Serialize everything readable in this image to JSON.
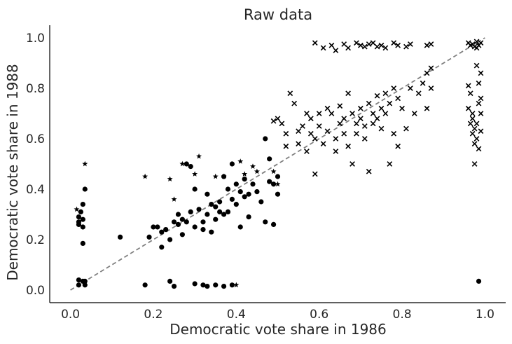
{
  "chart_data": {
    "type": "scatter",
    "title": "Raw data",
    "xlabel": "Democratic vote share in 1986",
    "ylabel": "Democratic vote share in 1988",
    "xlim": [
      -0.05,
      1.05
    ],
    "ylim": [
      -0.05,
      1.05
    ],
    "xticks": [
      "0.0",
      "0.2",
      "0.4",
      "0.6",
      "0.8",
      "1.0"
    ],
    "yticks": [
      "0.0",
      "0.2",
      "0.4",
      "0.6",
      "0.8",
      "1.0"
    ],
    "grid": false,
    "reference_line": {
      "style": "dashed",
      "color": "#808080",
      "from": [
        0,
        0
      ],
      "to": [
        1,
        1
      ]
    },
    "series": [
      {
        "marker": "circle",
        "points": [
          [
            0.02,
            0.29
          ],
          [
            0.02,
            0.27
          ],
          [
            0.02,
            0.26
          ],
          [
            0.03,
            0.28
          ],
          [
            0.025,
            0.31
          ],
          [
            0.03,
            0.25
          ],
          [
            0.03,
            0.34
          ],
          [
            0.035,
            0.4
          ],
          [
            0.03,
            0.185
          ],
          [
            0.02,
            0.04
          ],
          [
            0.03,
            0.035
          ],
          [
            0.035,
            0.035
          ],
          [
            0.02,
            0.02
          ],
          [
            0.035,
            0.02
          ],
          [
            0.12,
            0.21
          ],
          [
            0.18,
            0.02
          ],
          [
            0.19,
            0.21
          ],
          [
            0.2,
            0.25
          ],
          [
            0.21,
            0.25
          ],
          [
            0.22,
            0.23
          ],
          [
            0.23,
            0.24
          ],
          [
            0.22,
            0.17
          ],
          [
            0.24,
            0.2
          ],
          [
            0.24,
            0.035
          ],
          [
            0.25,
            0.015
          ],
          [
            0.25,
            0.27
          ],
          [
            0.26,
            0.26
          ],
          [
            0.26,
            0.3
          ],
          [
            0.27,
            0.22
          ],
          [
            0.27,
            0.28
          ],
          [
            0.28,
            0.27
          ],
          [
            0.28,
            0.5
          ],
          [
            0.29,
            0.49
          ],
          [
            0.29,
            0.31
          ],
          [
            0.3,
            0.25
          ],
          [
            0.3,
            0.4
          ],
          [
            0.31,
            0.32
          ],
          [
            0.32,
            0.24
          ],
          [
            0.32,
            0.27
          ],
          [
            0.33,
            0.38
          ],
          [
            0.33,
            0.3
          ],
          [
            0.34,
            0.34
          ],
          [
            0.34,
            0.23
          ],
          [
            0.35,
            0.28
          ],
          [
            0.35,
            0.33
          ],
          [
            0.36,
            0.31
          ],
          [
            0.36,
            0.35
          ],
          [
            0.37,
            0.3
          ],
          [
            0.37,
            0.45
          ],
          [
            0.38,
            0.31
          ],
          [
            0.38,
            0.4
          ],
          [
            0.39,
            0.36
          ],
          [
            0.39,
            0.5
          ],
          [
            0.4,
            0.42
          ],
          [
            0.4,
            0.34
          ],
          [
            0.41,
            0.39
          ],
          [
            0.41,
            0.25
          ],
          [
            0.42,
            0.37
          ],
          [
            0.42,
            0.44
          ],
          [
            0.43,
            0.38
          ],
          [
            0.43,
            0.29
          ],
          [
            0.44,
            0.42
          ],
          [
            0.45,
            0.39
          ],
          [
            0.46,
            0.35
          ],
          [
            0.47,
            0.6
          ],
          [
            0.47,
            0.27
          ],
          [
            0.48,
            0.43
          ],
          [
            0.48,
            0.52
          ],
          [
            0.49,
            0.42
          ],
          [
            0.49,
            0.26
          ],
          [
            0.5,
            0.45
          ],
          [
            0.5,
            0.38
          ],
          [
            0.3,
            0.025
          ],
          [
            0.32,
            0.02
          ],
          [
            0.33,
            0.015
          ],
          [
            0.35,
            0.02
          ],
          [
            0.37,
            0.015
          ],
          [
            0.39,
            0.02
          ],
          [
            0.985,
            0.035
          ]
        ]
      },
      {
        "marker": "star",
        "points": [
          [
            0.015,
            0.32
          ],
          [
            0.035,
            0.5
          ],
          [
            0.18,
            0.45
          ],
          [
            0.24,
            0.44
          ],
          [
            0.27,
            0.5
          ],
          [
            0.3,
            0.46
          ],
          [
            0.31,
            0.53
          ],
          [
            0.35,
            0.45
          ],
          [
            0.37,
            0.45
          ],
          [
            0.41,
            0.51
          ],
          [
            0.42,
            0.46
          ],
          [
            0.44,
            0.49
          ],
          [
            0.45,
            0.47
          ],
          [
            0.49,
            0.47
          ],
          [
            0.5,
            0.42
          ],
          [
            0.4,
            0.02
          ],
          [
            0.25,
            0.36
          ]
        ]
      },
      {
        "marker": "x",
        "points": [
          [
            0.49,
            0.67
          ],
          [
            0.5,
            0.68
          ],
          [
            0.51,
            0.66
          ],
          [
            0.52,
            0.62
          ],
          [
            0.52,
            0.57
          ],
          [
            0.53,
            0.78
          ],
          [
            0.54,
            0.74
          ],
          [
            0.55,
            0.63
          ],
          [
            0.55,
            0.58
          ],
          [
            0.56,
            0.65
          ],
          [
            0.57,
            0.7
          ],
          [
            0.57,
            0.55
          ],
          [
            0.58,
            0.62
          ],
          [
            0.58,
            0.68
          ],
          [
            0.59,
            0.6
          ],
          [
            0.59,
            0.46
          ],
          [
            0.6,
            0.65
          ],
          [
            0.6,
            0.7
          ],
          [
            0.61,
            0.58
          ],
          [
            0.62,
            0.72
          ],
          [
            0.62,
            0.63
          ],
          [
            0.63,
            0.7
          ],
          [
            0.64,
            0.6
          ],
          [
            0.64,
            0.55
          ],
          [
            0.65,
            0.73
          ],
          [
            0.65,
            0.66
          ],
          [
            0.66,
            0.68
          ],
          [
            0.66,
            0.62
          ],
          [
            0.67,
            0.78
          ],
          [
            0.67,
            0.57
          ],
          [
            0.68,
            0.7
          ],
          [
            0.68,
            0.5
          ],
          [
            0.69,
            0.66
          ],
          [
            0.69,
            0.62
          ],
          [
            0.7,
            0.72
          ],
          [
            0.7,
            0.68
          ],
          [
            0.71,
            0.65
          ],
          [
            0.71,
            0.6
          ],
          [
            0.72,
            0.74
          ],
          [
            0.72,
            0.47
          ],
          [
            0.73,
            0.7
          ],
          [
            0.73,
            0.66
          ],
          [
            0.74,
            0.77
          ],
          [
            0.74,
            0.68
          ],
          [
            0.75,
            0.72
          ],
          [
            0.75,
            0.64
          ],
          [
            0.76,
            0.78
          ],
          [
            0.76,
            0.7
          ],
          [
            0.77,
            0.74
          ],
          [
            0.77,
            0.5
          ],
          [
            0.78,
            0.8
          ],
          [
            0.78,
            0.62
          ],
          [
            0.79,
            0.76
          ],
          [
            0.79,
            0.57
          ],
          [
            0.8,
            0.72
          ],
          [
            0.81,
            0.64
          ],
          [
            0.82,
            0.8
          ],
          [
            0.83,
            0.7
          ],
          [
            0.84,
            0.78
          ],
          [
            0.85,
            0.82
          ],
          [
            0.86,
            0.86
          ],
          [
            0.86,
            0.72
          ],
          [
            0.87,
            0.88
          ],
          [
            0.87,
            0.8
          ],
          [
            0.59,
            0.98
          ],
          [
            0.61,
            0.96
          ],
          [
            0.63,
            0.97
          ],
          [
            0.64,
            0.95
          ],
          [
            0.66,
            0.975
          ],
          [
            0.67,
            0.96
          ],
          [
            0.69,
            0.98
          ],
          [
            0.7,
            0.97
          ],
          [
            0.71,
            0.965
          ],
          [
            0.72,
            0.975
          ],
          [
            0.73,
            0.98
          ],
          [
            0.74,
            0.965
          ],
          [
            0.75,
            0.97
          ],
          [
            0.76,
            0.96
          ],
          [
            0.78,
            0.98
          ],
          [
            0.79,
            0.97
          ],
          [
            0.81,
            0.965
          ],
          [
            0.82,
            0.975
          ],
          [
            0.86,
            0.97
          ],
          [
            0.87,
            0.975
          ],
          [
            0.96,
            0.98
          ],
          [
            0.97,
            0.975
          ],
          [
            0.98,
            0.985
          ],
          [
            0.985,
            0.97
          ],
          [
            0.99,
            0.98
          ],
          [
            0.975,
            0.965
          ],
          [
            0.965,
            0.97
          ],
          [
            0.98,
            0.96
          ],
          [
            0.96,
            0.81
          ],
          [
            0.965,
            0.78
          ],
          [
            0.96,
            0.72
          ],
          [
            0.97,
            0.7
          ],
          [
            0.965,
            0.66
          ],
          [
            0.975,
            0.64
          ],
          [
            0.97,
            0.62
          ],
          [
            0.98,
            0.6
          ],
          [
            0.975,
            0.58
          ],
          [
            0.985,
            0.74
          ],
          [
            0.98,
            0.89
          ],
          [
            0.99,
            0.86
          ],
          [
            0.985,
            0.82
          ],
          [
            0.99,
            0.76
          ],
          [
            0.98,
            0.66
          ],
          [
            0.99,
            0.63
          ],
          [
            0.985,
            0.56
          ],
          [
            0.975,
            0.5
          ],
          [
            0.99,
            0.7
          ],
          [
            0.97,
            0.68
          ]
        ]
      }
    ]
  }
}
